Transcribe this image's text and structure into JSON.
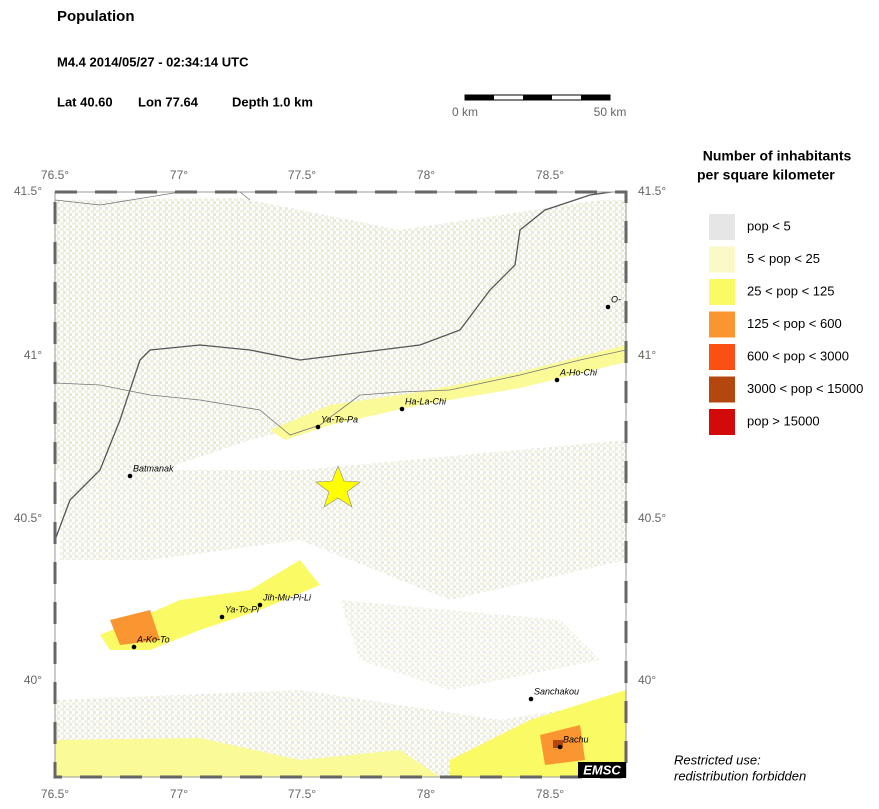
{
  "header": {
    "title": "Population",
    "event": "M4.4  2014/05/27 - 02:34:14 UTC",
    "lat": "Lat 40.60",
    "lon": "Lon 77.64",
    "depth": "Depth  1.0 km"
  },
  "scale_bar": {
    "start": "0 km",
    "end": "50 km"
  },
  "axes": {
    "top": [
      "76.5°",
      "77°",
      "77.5°",
      "78°",
      "78.5°"
    ],
    "bottom": [
      "76.5°",
      "77°",
      "77.5°",
      "78°",
      "78.5°"
    ],
    "left": [
      "41.5°",
      "41°",
      "40.5°",
      "40°"
    ],
    "right": [
      "41.5°",
      "41°",
      "40.5°",
      "40°"
    ]
  },
  "cities": [
    "Batmanak",
    "Ya-Te-Pa",
    "Ha-La-Chi",
    "A-Ho-Chi",
    "O-",
    "Jih-Mu-Pi-Li",
    "Ya-To-Pi",
    "A-Ko-To",
    "Sanchakou",
    "Bachu"
  ],
  "legend": {
    "title": [
      "Number of inhabitants",
      "per square kilometer"
    ],
    "items": [
      {
        "label": "pop < 5",
        "color": "#e6e6e6"
      },
      {
        "label": "5 < pop < 25",
        "color": "#fafac8"
      },
      {
        "label": "25 < pop < 125",
        "color": "#fafa64"
      },
      {
        "label": "125 < pop < 600",
        "color": "#fa9632"
      },
      {
        "label": "600 < pop < 3000",
        "color": "#fa5014"
      },
      {
        "label": "3000 < pop < 15000",
        "color": "#b4460f"
      },
      {
        "label": "pop > 15000",
        "color": "#d20a0a"
      }
    ]
  },
  "badge": "EMSC",
  "notice": [
    "Restricted use:",
    "redistribution forbidden"
  ]
}
